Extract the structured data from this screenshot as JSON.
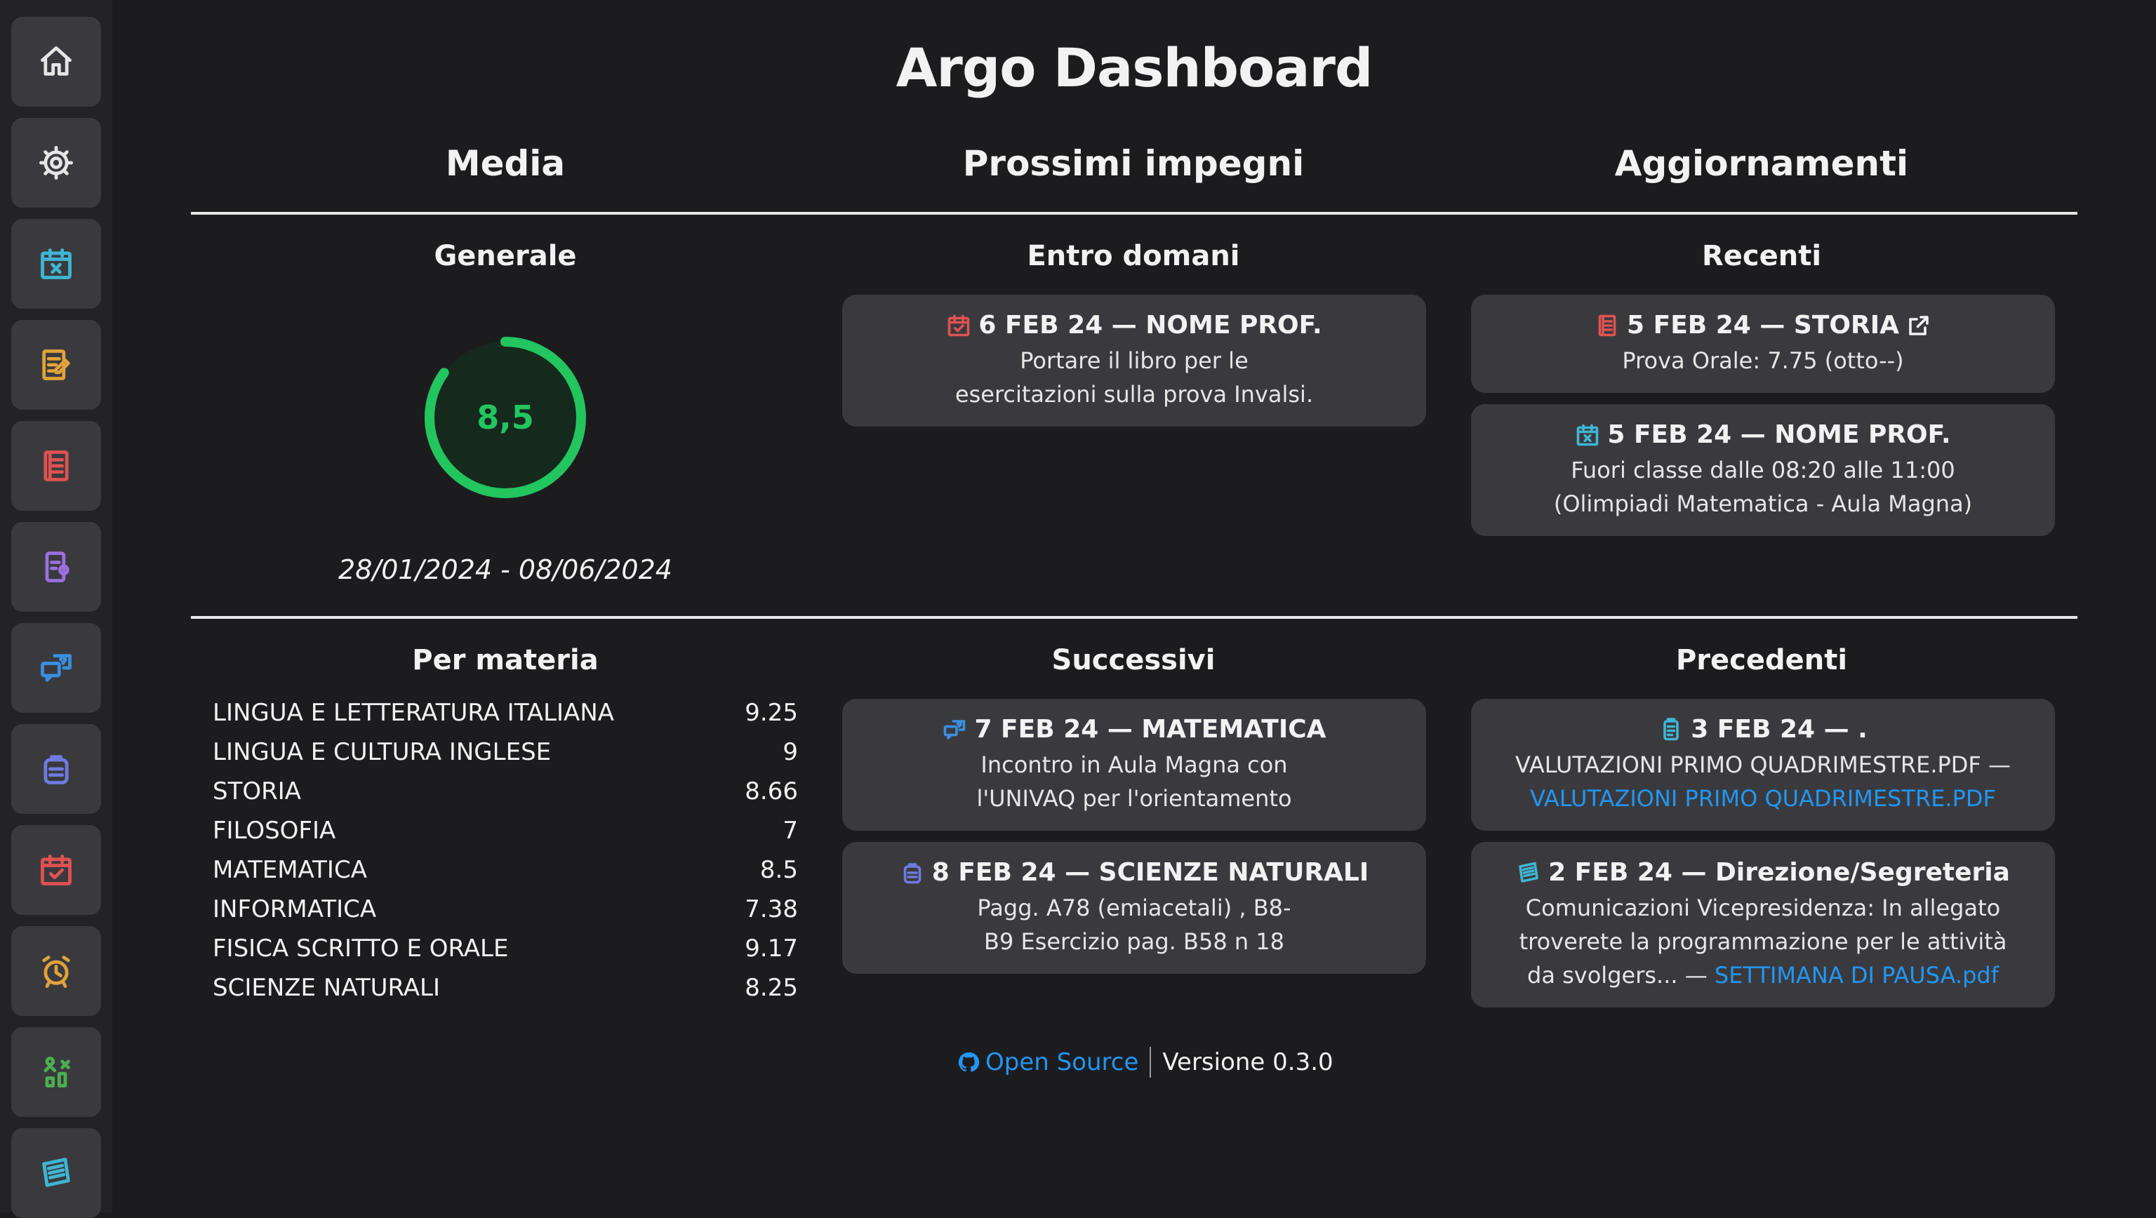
{
  "header": {
    "title": "Argo Dashboard"
  },
  "columns": {
    "media": "Media",
    "impegni": "Prossimi impegni",
    "aggiornamenti": "Aggiornamenti"
  },
  "sidebar": {
    "items": [
      {
        "icon": "home-icon",
        "color": "#e6e6e6"
      },
      {
        "icon": "gear-icon",
        "color": "#e6e6e6"
      },
      {
        "icon": "calendar-x-icon",
        "color": "#3fb6d3"
      },
      {
        "icon": "notebook-edit-icon",
        "color": "#e0a33a"
      },
      {
        "icon": "register-book-icon",
        "color": "#e05252"
      },
      {
        "icon": "device-note-icon",
        "color": "#9b6fe0"
      },
      {
        "icon": "question-chat-icon",
        "color": "#3a8fe0"
      },
      {
        "icon": "backpack-icon",
        "color": "#6f7be0"
      },
      {
        "icon": "calendar-check-icon",
        "color": "#e05252"
      },
      {
        "icon": "alarm-clock-icon",
        "color": "#e0a33a"
      },
      {
        "icon": "people-chart-icon",
        "color": "#4caf50"
      },
      {
        "icon": "board-icon",
        "color": "#3fb6d3"
      }
    ]
  },
  "media": {
    "generale_label": "Generale",
    "value": "8,5",
    "fraction": 0.85,
    "ring_color": "#22c55e",
    "period": "28/01/2024 - 08/06/2024",
    "per_materia_label": "Per materia",
    "subjects": [
      {
        "name": "LINGUA E LETTERATURA ITALIANA",
        "grade": "9.25"
      },
      {
        "name": "LINGUA E CULTURA INGLESE",
        "grade": "9"
      },
      {
        "name": "STORIA",
        "grade": "8.66"
      },
      {
        "name": "FILOSOFIA",
        "grade": "7"
      },
      {
        "name": "MATEMATICA",
        "grade": "8.5"
      },
      {
        "name": "INFORMATICA",
        "grade": "7.38"
      },
      {
        "name": "FISICA SCRITTO E ORALE",
        "grade": "9.17"
      },
      {
        "name": "SCIENZE NATURALI",
        "grade": "8.25"
      }
    ]
  },
  "impegni": {
    "entro_domani_label": "Entro domani",
    "entro_domani": [
      {
        "icon": "calendar-check-icon",
        "icon_color": "#e05252",
        "title": "6 FEB 24 — NOME PROF.",
        "lines": [
          "Portare il libro per le",
          "esercitazioni sulla prova Invalsi."
        ]
      }
    ],
    "successivi_label": "Successivi",
    "successivi": [
      {
        "icon": "question-chat-icon",
        "icon_color": "#3a8fe0",
        "title": "7 FEB 24 — MATEMATICA",
        "lines": [
          "Incontro in Aula Magna con",
          "l'UNIVAQ per l'orientamento"
        ]
      },
      {
        "icon": "backpack-icon",
        "icon_color": "#6f7be0",
        "title": "8 FEB 24 — SCIENZE NATURALI",
        "lines": [
          "Pagg. A78 (emiacetali) , B8-",
          "B9 Esercizio pag. B58 n 18"
        ]
      }
    ]
  },
  "aggiornamenti": {
    "recenti_label": "Recenti",
    "recenti": [
      {
        "icon": "register-book-icon",
        "icon_color": "#e05252",
        "title": "5 FEB 24 — STORIA",
        "lines": [
          "Prova Orale: 7.75 (otto--)"
        ]
      },
      {
        "icon": "calendar-x-icon",
        "icon_color": "#3fb6d3",
        "title": "5 FEB 24 — NOME PROF.",
        "lines": [
          "Fuori classe dalle 08:20 alle 11:00",
          "(Olimpiadi Matematica - Aula Magna)"
        ]
      }
    ],
    "precedenti_label": "Precedenti",
    "precedenti": [
      {
        "icon": "clipboard-icon",
        "icon_color": "#3fb6d3",
        "title": "3 FEB 24 — .",
        "text": "VALUTAZIONI PRIMO QUADRIMESTRE.PDF —",
        "link": "VALUTAZIONI PRIMO QUADRIMESTRE.PDF"
      },
      {
        "icon": "board-icon",
        "icon_color": "#3fb6d3",
        "title": "2 FEB 24 — Direzione/Segreteria",
        "lines": [
          "Comunicazioni Vicepresidenza: In allegato",
          "troverete la programmazione per le attività"
        ],
        "text": "da svolgers... —",
        "link": "SETTIMANA DI PAUSA.pdf"
      }
    ]
  },
  "footer": {
    "open_source": "Open Source",
    "version": "Versione 0.3.0",
    "link_color": "#2196f3"
  }
}
